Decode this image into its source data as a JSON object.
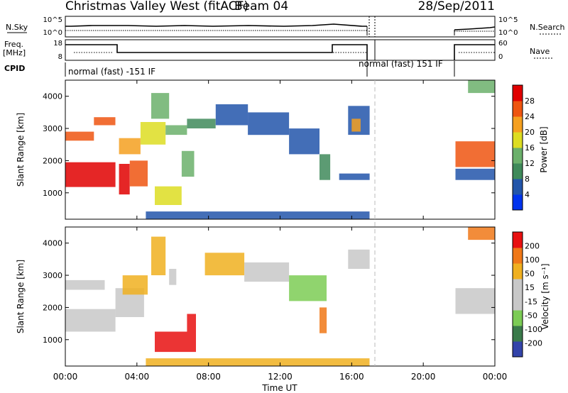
{
  "title": {
    "station": "Christmas Valley West (fitACF)",
    "beam": "Beam 04",
    "date": "28/Sep/2011"
  },
  "noise_panel": {
    "left_label": "N.Sky",
    "right_label": "N.Search",
    "left_ticks": [
      "10^5",
      "10^0"
    ],
    "right_ticks": [
      "10^5",
      "10^0"
    ]
  },
  "freq_panel": {
    "left_label_1": "Freq.",
    "left_label_2": "[MHz]",
    "right_label": "Nave",
    "left_ticks": [
      "18",
      "8"
    ],
    "right_ticks": [
      "60",
      "0"
    ]
  },
  "cpid": {
    "label": "CPID",
    "segments": [
      {
        "text": "normal (fast) -151 IF",
        "start_hour": 0,
        "end_hour": 17.0
      },
      {
        "text": "normal (fast) 151 IF",
        "start_hour": 17.0,
        "end_hour": 21.8
      }
    ]
  },
  "x_axis": {
    "label": "Time UT",
    "ticks": [
      "00:00",
      "04:00",
      "08:00",
      "12:00",
      "16:00",
      "20:00",
      "00:00"
    ],
    "range_hours": [
      0,
      24
    ]
  },
  "chart_data": [
    {
      "type": "heatmap",
      "name": "power",
      "ylabel": "Slant Range [km]",
      "yticks": [
        1000,
        2000,
        3000,
        4000
      ],
      "ylim": [
        180,
        4500
      ],
      "colorbar_label": "Power [dB]",
      "colorbar_ticks": [
        "28",
        "24",
        "20",
        "16",
        "12",
        "8",
        "4"
      ],
      "colors": [
        "#0033ee",
        "#2255aa",
        "#3f8a5a",
        "#6bb06b",
        "#dddd22",
        "#f5a020",
        "#ee5510",
        "#e00000"
      ],
      "bands": [
        {
          "t0": 0.0,
          "t1": 2.8,
          "r0": 1180,
          "r1": 1950,
          "level": 7
        },
        {
          "t0": 0.0,
          "t1": 1.6,
          "r0": 2620,
          "r1": 2900,
          "level": 6
        },
        {
          "t0": 1.6,
          "t1": 2.8,
          "r0": 3100,
          "r1": 3350,
          "level": 6
        },
        {
          "t0": 3.0,
          "t1": 3.6,
          "r0": 950,
          "r1": 1900,
          "level": 7
        },
        {
          "t0": 3.6,
          "t1": 4.6,
          "r0": 1200,
          "r1": 2000,
          "level": 6
        },
        {
          "t0": 3.0,
          "t1": 4.2,
          "r0": 2200,
          "r1": 2700,
          "level": 5
        },
        {
          "t0": 4.2,
          "t1": 5.6,
          "r0": 2500,
          "r1": 3200,
          "level": 4
        },
        {
          "t0": 4.8,
          "t1": 5.8,
          "r0": 3300,
          "r1": 4100,
          "level": 3
        },
        {
          "t0": 5.0,
          "t1": 6.5,
          "r0": 620,
          "r1": 1200,
          "level": 4
        },
        {
          "t0": 6.5,
          "t1": 7.2,
          "r0": 1500,
          "r1": 2300,
          "level": 3
        },
        {
          "t0": 5.6,
          "t1": 6.8,
          "r0": 2800,
          "r1": 3100,
          "level": 3
        },
        {
          "t0": 6.8,
          "t1": 8.4,
          "r0": 3000,
          "r1": 3300,
          "level": 2
        },
        {
          "t0": 8.4,
          "t1": 10.2,
          "r0": 3100,
          "r1": 3750,
          "level": 1
        },
        {
          "t0": 10.2,
          "t1": 12.5,
          "r0": 2800,
          "r1": 3500,
          "level": 1
        },
        {
          "t0": 12.5,
          "t1": 14.2,
          "r0": 2200,
          "r1": 3000,
          "level": 1
        },
        {
          "t0": 14.2,
          "t1": 14.8,
          "r0": 1400,
          "r1": 2200,
          "level": 2
        },
        {
          "t0": 15.8,
          "t1": 17.0,
          "r0": 2800,
          "r1": 3700,
          "level": 1
        },
        {
          "t0": 16.0,
          "t1": 16.5,
          "r0": 2900,
          "r1": 3300,
          "level": 5
        },
        {
          "t0": 15.3,
          "t1": 17.0,
          "r0": 1400,
          "r1": 1600,
          "level": 1
        },
        {
          "t0": 4.5,
          "t1": 17.0,
          "r0": 180,
          "r1": 420,
          "level": 1
        },
        {
          "t0": 21.8,
          "t1": 24.0,
          "r0": 1800,
          "r1": 2600,
          "level": 6
        },
        {
          "t0": 21.8,
          "t1": 24.0,
          "r0": 1400,
          "r1": 1750,
          "level": 1
        },
        {
          "t0": 22.5,
          "t1": 24.0,
          "r0": 4100,
          "r1": 4500,
          "level": 3
        }
      ]
    },
    {
      "type": "heatmap",
      "name": "velocity",
      "ylabel": "Slant Range [km]",
      "yticks": [
        1000,
        2000,
        3000,
        4000
      ],
      "ylim": [
        180,
        4500
      ],
      "colorbar_label": "Velocity [m s⁻¹]",
      "colorbar_ticks": [
        "200",
        "100",
        "50",
        "15",
        "-15",
        "-50",
        "-100",
        "-200"
      ],
      "colors": [
        "#3344aa",
        "#3a7a4a",
        "#7ccc55",
        "#c8c8c8",
        "#c8c8c8",
        "#f0b020",
        "#f07818",
        "#e81010"
      ],
      "bands": [
        {
          "t0": 0.0,
          "t1": 2.8,
          "r0": 1250,
          "r1": 1950,
          "level": 3
        },
        {
          "t0": 0.0,
          "t1": 2.2,
          "r0": 2550,
          "r1": 2850,
          "level": 3
        },
        {
          "t0": 2.8,
          "t1": 4.4,
          "r0": 1700,
          "r1": 2600,
          "level": 3
        },
        {
          "t0": 3.2,
          "t1": 4.6,
          "r0": 2400,
          "r1": 3000,
          "level": 5
        },
        {
          "t0": 4.8,
          "t1": 5.6,
          "r0": 3000,
          "r1": 4200,
          "level": 5
        },
        {
          "t0": 5.0,
          "t1": 7.3,
          "r0": 620,
          "r1": 1250,
          "level": 7
        },
        {
          "t0": 6.8,
          "t1": 7.3,
          "r0": 1250,
          "r1": 1800,
          "level": 7
        },
        {
          "t0": 5.8,
          "t1": 6.2,
          "r0": 2700,
          "r1": 3200,
          "level": 3
        },
        {
          "t0": 7.8,
          "t1": 10.0,
          "r0": 3000,
          "r1": 3700,
          "level": 5
        },
        {
          "t0": 10.0,
          "t1": 12.5,
          "r0": 2800,
          "r1": 3400,
          "level": 3
        },
        {
          "t0": 12.5,
          "t1": 14.6,
          "r0": 2200,
          "r1": 3000,
          "level": 2
        },
        {
          "t0": 14.2,
          "t1": 14.6,
          "r0": 1200,
          "r1": 2000,
          "level": 6
        },
        {
          "t0": 15.8,
          "t1": 17.0,
          "r0": 3200,
          "r1": 3800,
          "level": 3
        },
        {
          "t0": 4.5,
          "t1": 17.0,
          "r0": 180,
          "r1": 420,
          "level": 5
        },
        {
          "t0": 21.8,
          "t1": 24.0,
          "r0": 1800,
          "r1": 2600,
          "level": 3
        },
        {
          "t0": 22.5,
          "t1": 24.0,
          "r0": 4100,
          "r1": 4500,
          "level": 6
        }
      ]
    }
  ]
}
